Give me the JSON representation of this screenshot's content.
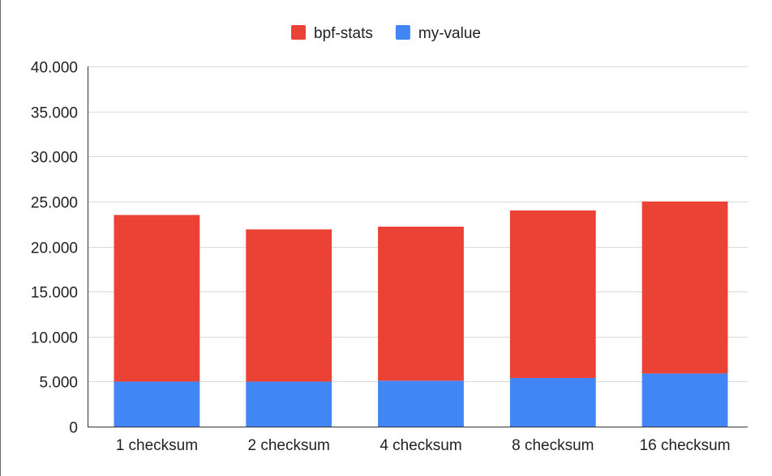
{
  "chart_data": {
    "type": "bar",
    "stacked": true,
    "title": "",
    "xlabel": "",
    "ylabel": "",
    "categories": [
      "1 checksum",
      "2 checksum",
      "4 checksum",
      "8 checksum",
      "16 checksum"
    ],
    "series": [
      {
        "name": "my-value",
        "color": "#4285f4",
        "values": [
          5000,
          5000,
          5100,
          5400,
          5900
        ]
      },
      {
        "name": "bpf-stats",
        "color": "#ea4335",
        "values": [
          18500,
          16900,
          17100,
          18600,
          19100
        ]
      }
    ],
    "ylim": [
      0,
      40000
    ],
    "yticks": [
      0,
      5000,
      10000,
      15000,
      20000,
      25000,
      30000,
      35000,
      40000
    ],
    "ytick_labels": [
      "0",
      "5.000",
      "10.000",
      "15.000",
      "20.000",
      "25.000",
      "30.000",
      "35.000",
      "40.000"
    ],
    "grid": true,
    "legend": {
      "position": "top-center",
      "entries": [
        {
          "label": "bpf-stats",
          "color": "#ea4335"
        },
        {
          "label": "my-value",
          "color": "#4285f4"
        }
      ]
    }
  }
}
